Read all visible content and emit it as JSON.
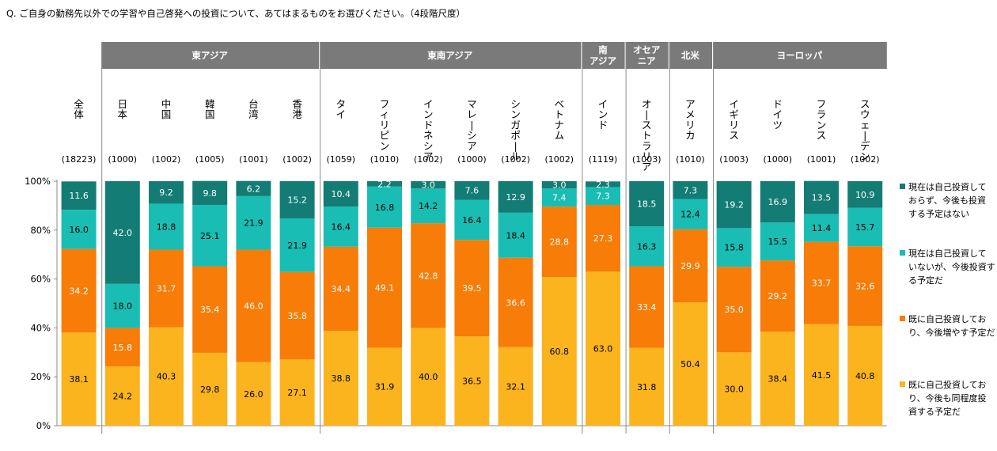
{
  "question": "Q. ご自身の勤務先以外での学習や自己啓発への投資について、あてはまるものをお選びください。（4段階尺度）",
  "colors": {
    "s1": "#fbb41d",
    "s2": "#f77c08",
    "s3": "#1abdb3",
    "s4": "#137c74",
    "group_header": "#7a7a7a",
    "separator": "#8c8c8c",
    "axis": "#8c8c8c"
  },
  "chart_data": {
    "type": "bar",
    "stacked": true,
    "ylim": [
      0,
      100
    ],
    "yticks": [
      "0%",
      "20%",
      "40%",
      "60%",
      "80%",
      "100%"
    ],
    "groups": [
      {
        "label": "",
        "count": 1
      },
      {
        "label": "東アジア",
        "count": 5
      },
      {
        "label": "東南アジア",
        "count": 6
      },
      {
        "label": "南\nアジア",
        "count": 1
      },
      {
        "label": "オセア\nニア",
        "count": 1
      },
      {
        "label": "北米",
        "count": 1
      },
      {
        "label": "ヨーロッパ",
        "count": 4
      }
    ],
    "categories": [
      "全体",
      "日本",
      "中国",
      "韓国",
      "台湾",
      "香港",
      "タイ",
      "フィリピン",
      "インドネシア",
      "マレーシア",
      "シンガポール",
      "ベトナム",
      "インド",
      "オーストラリア",
      "アメリカ",
      "イギリス",
      "ドイツ",
      "フランス",
      "スウェーデン"
    ],
    "sample_sizes": [
      "(18223)",
      "(1000)",
      "(1002)",
      "(1005)",
      "(1001)",
      "(1002)",
      "(1059)",
      "(1010)",
      "(1002)",
      "(1000)",
      "(1002)",
      "(1002)",
      "(1119)",
      "(1003)",
      "(1010)",
      "(1003)",
      "(1000)",
      "(1001)",
      "(1002)"
    ],
    "series": [
      {
        "name": "既に自己投資しており、今後も同程度投資する予定だ",
        "color_key": "s1",
        "values": [
          38.1,
          24.2,
          40.3,
          29.8,
          26.0,
          27.1,
          38.8,
          31.9,
          40.0,
          36.5,
          32.1,
          60.8,
          63.0,
          31.8,
          50.4,
          30.0,
          38.4,
          41.5,
          40.8
        ],
        "labels": [
          "38.1",
          "24.2",
          "40.3",
          "29.8",
          "26.0",
          "27.1",
          "38.8",
          "31.9",
          "40.0",
          "36.5",
          "32.1",
          "60.8",
          "63.0",
          "31.8",
          "50.4",
          "30.0",
          "38.4",
          "41.5",
          "40.8"
        ]
      },
      {
        "name": "既に自己投資しており、今後増やす予定だ",
        "color_key": "s2",
        "values": [
          34.2,
          15.8,
          31.7,
          35.4,
          46.0,
          35.8,
          34.4,
          49.1,
          42.8,
          39.5,
          36.6,
          28.8,
          27.3,
          33.4,
          29.9,
          35.0,
          29.2,
          33.7,
          32.6
        ],
        "labels": [
          "34.2",
          "15.8",
          "31.7",
          "35.4",
          "46.0",
          "35.8",
          "34.4",
          "49.1",
          "42.8",
          "39.5",
          "36.6",
          "28.8",
          "27.3",
          "33.4",
          "29.9",
          "35.0",
          "29.2",
          "33.7",
          "32.6"
        ]
      },
      {
        "name": "現在は自己投資していないが、今後投資する予定だ",
        "color_key": "s3",
        "values": [
          16.0,
          18.0,
          18.8,
          25.1,
          21.9,
          21.9,
          16.4,
          16.8,
          14.2,
          16.4,
          18.4,
          7.4,
          7.3,
          16.3,
          12.4,
          15.8,
          15.5,
          11.4,
          15.7
        ],
        "labels": [
          "16.0",
          "18.0",
          "18.8",
          "25.1",
          "21.9",
          "21.9",
          "16.4",
          "16.8",
          "14.2",
          "16.4",
          "18.4",
          "7.4",
          "7.3",
          "16.3",
          "12.4",
          "15.8",
          "15.5",
          "11.4",
          "15.7"
        ]
      },
      {
        "name": "現在は自己投資しておらず、今後も投資する予定はない",
        "color_key": "s4",
        "values": [
          11.6,
          42.0,
          9.2,
          9.8,
          6.2,
          15.2,
          10.4,
          2.2,
          3.0,
          7.6,
          12.9,
          3.0,
          2.3,
          18.5,
          7.3,
          19.2,
          16.9,
          13.5,
          10.9
        ],
        "labels": [
          "11.6",
          "42.0",
          "9.2",
          "9.8",
          "6.2",
          "15.2",
          "10.4",
          "2.2",
          "3.0",
          "7.6",
          "12.9",
          "3.0",
          "2.3",
          "18.5",
          "7.3",
          "19.2",
          "16.9",
          "13.5",
          "10.9"
        ]
      }
    ],
    "legend": {
      "position": "right",
      "items": [
        {
          "color_key": "s4",
          "lines": [
            "現在は自己投資して",
            "おらず、今後も投資",
            "する予定はない"
          ]
        },
        {
          "color_key": "s3",
          "lines": [
            "現在は自己投資して",
            "いないが、今後投資す",
            "る予定だ"
          ]
        },
        {
          "color_key": "s2",
          "lines": [
            "既に自己投資してお",
            "り、今後増やす予定だ"
          ]
        },
        {
          "color_key": "s1",
          "lines": [
            "既に自己投資してお",
            "り、今後も同程度投",
            "資する予定だ"
          ]
        }
      ]
    }
  }
}
